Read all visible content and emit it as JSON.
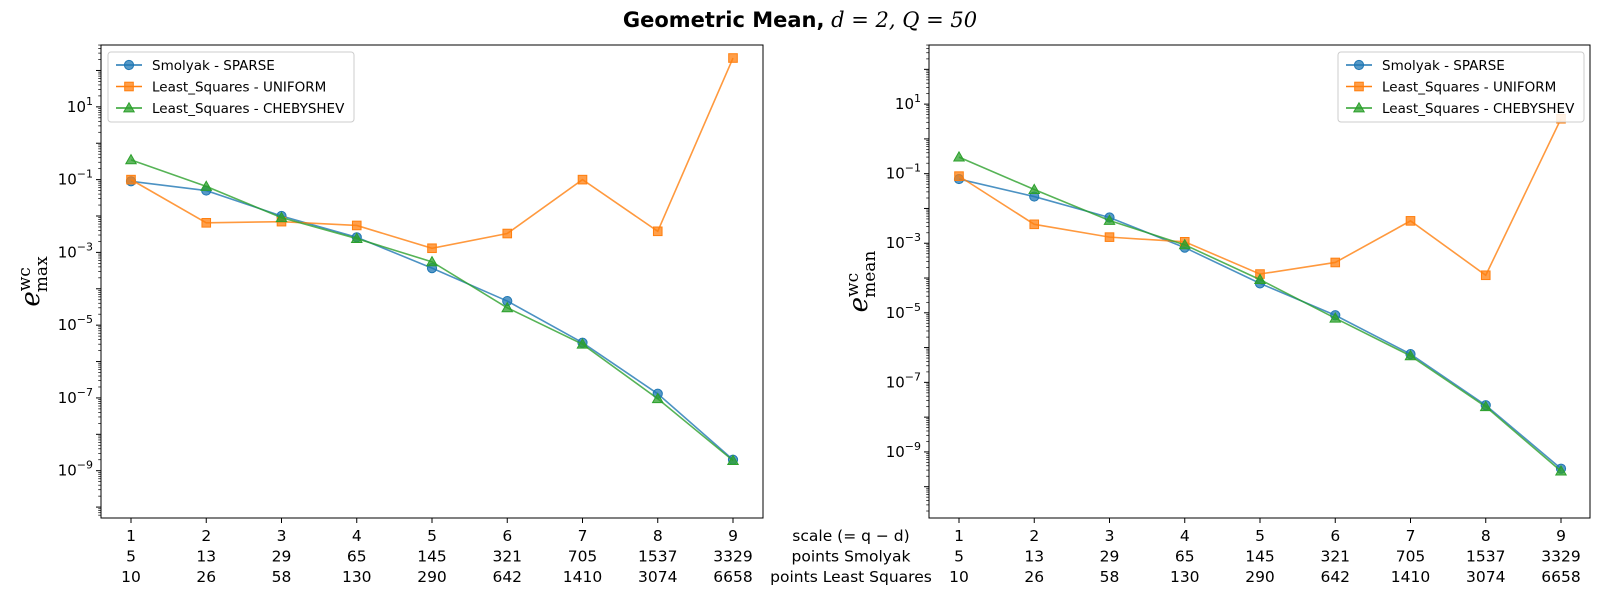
{
  "title": {
    "bold": "Geometric Mean,",
    "math": " d = 2, Q = 50"
  },
  "x_tick_rows": {
    "scale": [
      "1",
      "2",
      "3",
      "4",
      "5",
      "6",
      "7",
      "8",
      "9"
    ],
    "points_smolyak": [
      "5",
      "13",
      "29",
      "65",
      "145",
      "321",
      "705",
      "1537",
      "3329"
    ],
    "points_least_squares": [
      "10",
      "26",
      "58",
      "130",
      "290",
      "642",
      "1410",
      "3074",
      "6658"
    ]
  },
  "row_labels": [
    "scale (= q − d)",
    "points Smolyak",
    "points Least Squares"
  ],
  "colors": {
    "sparse": "#1f77b4",
    "uniform": "#ff7f0e",
    "chebyshev": "#2ca02c"
  },
  "chart_data": [
    {
      "type": "line",
      "ylabel": "e_max^wc",
      "ylabel_main": "e",
      "ylabel_sup": "wc",
      "ylabel_sub": "max",
      "yscale": "log",
      "ylim": [
        5e-11,
        500.0
      ],
      "ylim_exp": [
        -10.3,
        2.7
      ],
      "yticks": [
        "10^1",
        "10^-1",
        "10^-3",
        "10^-5",
        "10^-7",
        "10^-9"
      ],
      "x": [
        1,
        2,
        3,
        4,
        5,
        6,
        7,
        8,
        9
      ],
      "legend": "top-left",
      "grid": false,
      "series": [
        {
          "name": "Smolyak - SPARSE",
          "marker": "circle",
          "values": [
            0.09,
            0.05,
            0.01,
            0.0026,
            0.00037,
            4.6e-05,
            3.3e-06,
            1.3e-07,
            2e-09
          ]
        },
        {
          "name": "Least_Squares - UNIFORM",
          "marker": "square",
          "values": [
            0.1,
            0.0065,
            0.007,
            0.0055,
            0.0013,
            0.0033,
            0.1,
            0.0038,
            220
          ]
        },
        {
          "name": "Least_Squares - CHEBYSHEV",
          "marker": "triangle",
          "values": [
            0.35,
            0.065,
            0.009,
            0.0024,
            0.00055,
            3e-05,
            3e-06,
            9.5e-08,
            1.9e-09
          ]
        }
      ]
    },
    {
      "type": "line",
      "ylabel": "e_mean^wc",
      "ylabel_main": "e",
      "ylabel_sup": "wc",
      "ylabel_sub": "mean",
      "yscale": "log",
      "ylim_exp": [
        -10.9,
        2.7
      ],
      "yticks": [
        "10^1",
        "10^-1",
        "10^-3",
        "10^-5",
        "10^-7",
        "10^-9"
      ],
      "x": [
        1,
        2,
        3,
        4,
        5,
        6,
        7,
        8,
        9
      ],
      "legend": "top-right",
      "grid": false,
      "series": [
        {
          "name": "Smolyak - SPARSE",
          "marker": "circle",
          "values": [
            0.07,
            0.022,
            0.0055,
            0.00075,
            7e-05,
            8.5e-06,
            6.5e-07,
            2.2e-08,
            3.3e-10
          ]
        },
        {
          "name": "Least_Squares - UNIFORM",
          "marker": "square",
          "values": [
            0.085,
            0.0035,
            0.0015,
            0.0011,
            0.00013,
            0.00028,
            0.0044,
            0.00012,
            3.8
          ]
        },
        {
          "name": "Least_Squares - CHEBYSHEV",
          "marker": "triangle",
          "values": [
            0.3,
            0.035,
            0.0045,
            0.0009,
            9e-05,
            7e-06,
            5.8e-07,
            2e-08,
            2.8e-10
          ]
        }
      ]
    }
  ]
}
